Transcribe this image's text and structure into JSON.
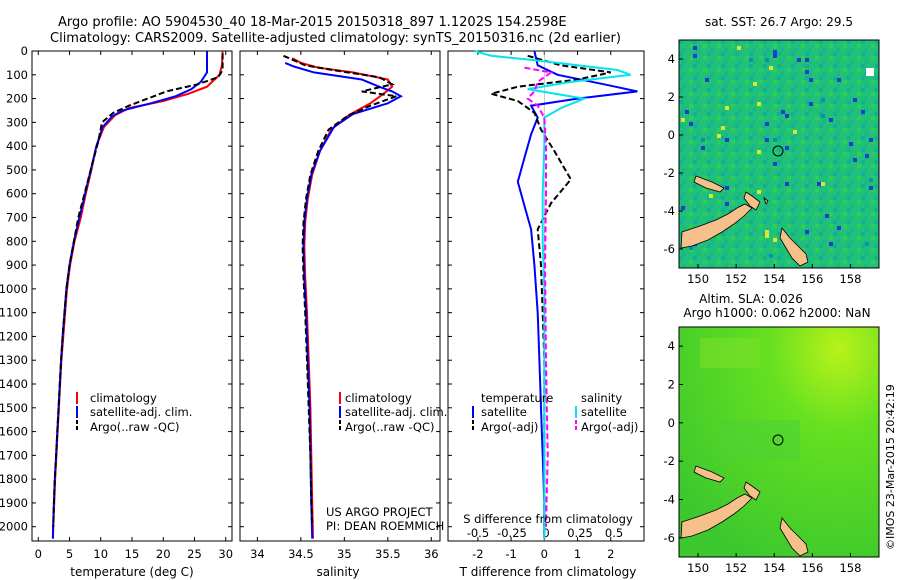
{
  "header": {
    "line1": "Argo profile: AO 5904530_40 18-Mar-2015 20150318_897 1.1202S 154.2598E",
    "line2": "Climatology: CARS2009. Satellite-adjusted climatology: synTS_20150316.nc (2d earlier)"
  },
  "colors": {
    "climatology": "#ff0000",
    "satellite": "#0000ff",
    "argo": "#000000",
    "salinity_sat": "#00e5ee",
    "salinity_argo": "#ff00ff",
    "sst_map_bg": "#1fc07a",
    "sla_map_bg": "#55dd22",
    "land": "#f5c08a"
  },
  "chart_data": [
    {
      "type": "line",
      "title": "",
      "xlabel": "temperature (deg C)",
      "ylabel": "",
      "xlim": [
        -1,
        31
      ],
      "ylim": [
        2060,
        0
      ],
      "xticks": [
        "0",
        "5",
        "10",
        "15",
        "20",
        "25",
        "30"
      ],
      "yticks": [
        "0",
        "100",
        "200",
        "300",
        "400",
        "500",
        "600",
        "700",
        "800",
        "900",
        "1000",
        "1100",
        "1200",
        "1300",
        "1400",
        "1500",
        "1600",
        "1700",
        "1800",
        "1900",
        "2000"
      ],
      "legend": [
        "climatology",
        "satellite-adj. clim.",
        "Argo(..raw -QC)"
      ],
      "series": [
        {
          "name": "climatology",
          "color": "#ff0000",
          "dash": false,
          "points": [
            [
              29.5,
              0
            ],
            [
              29.4,
              60
            ],
            [
              29.0,
              100
            ],
            [
              27.0,
              150
            ],
            [
              24.0,
              180
            ],
            [
              20.0,
              210
            ],
            [
              14.5,
              240
            ],
            [
              12.3,
              270
            ],
            [
              10.5,
              320
            ],
            [
              9.3,
              400
            ],
            [
              8.5,
              500
            ],
            [
              7.6,
              600
            ],
            [
              6.8,
              700
            ],
            [
              5.8,
              800
            ],
            [
              5.1,
              900
            ],
            [
              4.6,
              1000
            ],
            [
              4.3,
              1100
            ],
            [
              4.0,
              1200
            ],
            [
              3.7,
              1300
            ],
            [
              3.5,
              1400
            ],
            [
              3.3,
              1500
            ],
            [
              3.1,
              1600
            ],
            [
              2.9,
              1700
            ],
            [
              2.7,
              1800
            ],
            [
              2.55,
              1900
            ],
            [
              2.4,
              2000
            ],
            [
              2.35,
              2050
            ]
          ]
        },
        {
          "name": "satellite-adj. clim.",
          "color": "#0000ff",
          "dash": false,
          "points": [
            [
              27.0,
              0
            ],
            [
              27.0,
              90
            ],
            [
              26.0,
              130
            ],
            [
              24.5,
              160
            ],
            [
              22.0,
              190
            ],
            [
              18.0,
              220
            ],
            [
              13.5,
              250
            ],
            [
              11.8,
              275
            ],
            [
              10.3,
              320
            ],
            [
              9.3,
              400
            ],
            [
              8.4,
              500
            ],
            [
              7.5,
              600
            ],
            [
              6.6,
              700
            ],
            [
              5.7,
              800
            ],
            [
              5.0,
              900
            ],
            [
              4.5,
              1000
            ],
            [
              4.2,
              1100
            ],
            [
              3.9,
              1200
            ],
            [
              3.65,
              1300
            ],
            [
              3.45,
              1400
            ],
            [
              3.25,
              1500
            ],
            [
              3.05,
              1600
            ],
            [
              2.85,
              1700
            ],
            [
              2.65,
              1800
            ],
            [
              2.5,
              1900
            ],
            [
              2.38,
              2000
            ],
            [
              2.35,
              2050
            ]
          ]
        },
        {
          "name": "Argo(..raw -QC)",
          "color": "#000000",
          "dash": true,
          "points": [
            [
              29.5,
              10
            ],
            [
              29.5,
              80
            ],
            [
              28.8,
              110
            ],
            [
              25.5,
              140
            ],
            [
              20.5,
              170
            ],
            [
              17.5,
              200
            ],
            [
              14.5,
              230
            ],
            [
              12.0,
              260
            ],
            [
              10.2,
              300
            ],
            [
              9.6,
              380
            ],
            [
              8.7,
              470
            ],
            [
              7.8,
              560
            ],
            [
              7.2,
              620
            ],
            [
              6.4,
              700
            ],
            [
              5.7,
              800
            ],
            [
              5.0,
              900
            ],
            [
              4.5,
              1000
            ],
            [
              4.2,
              1100
            ],
            [
              3.9,
              1200
            ],
            [
              3.65,
              1300
            ],
            [
              3.45,
              1400
            ],
            [
              3.25,
              1500
            ],
            [
              3.05,
              1600
            ],
            [
              2.85,
              1700
            ],
            [
              2.65,
              1800
            ],
            [
              2.5,
              1900
            ],
            [
              2.4,
              2000
            ]
          ]
        }
      ]
    },
    {
      "type": "line",
      "title": "",
      "xlabel": "salinity",
      "ylabel": "",
      "xlim": [
        33.8,
        36.1
      ],
      "ylim": [
        2060,
        0
      ],
      "xticks": [
        "34",
        "34.5",
        "35",
        "35.5",
        "36"
      ],
      "legend": [
        "climatology",
        "satellite-adj. clim.",
        "Argo(..raw -QC)"
      ],
      "series": [
        {
          "name": "climatology",
          "color": "#ff0000",
          "dash": false,
          "points": [
            [
              34.4,
              30
            ],
            [
              34.5,
              50
            ],
            [
              34.7,
              70
            ],
            [
              35.1,
              90
            ],
            [
              35.5,
              120
            ],
            [
              35.55,
              150
            ],
            [
              35.45,
              180
            ],
            [
              35.3,
              220
            ],
            [
              35.05,
              270
            ],
            [
              34.85,
              330
            ],
            [
              34.72,
              420
            ],
            [
              34.63,
              520
            ],
            [
              34.58,
              620
            ],
            [
              34.55,
              720
            ],
            [
              34.54,
              820
            ],
            [
              34.55,
              950
            ],
            [
              34.57,
              1100
            ],
            [
              34.59,
              1300
            ],
            [
              34.61,
              1500
            ],
            [
              34.62,
              1700
            ],
            [
              34.63,
              1900
            ],
            [
              34.64,
              2050
            ]
          ]
        },
        {
          "name": "satellite-adj. clim.",
          "color": "#0000ff",
          "dash": false,
          "points": [
            [
              34.32,
              50
            ],
            [
              34.42,
              65
            ],
            [
              34.65,
              90
            ],
            [
              35.2,
              120
            ],
            [
              35.4,
              150
            ],
            [
              35.55,
              170
            ],
            [
              35.65,
              190
            ],
            [
              35.5,
              220
            ],
            [
              35.1,
              265
            ],
            [
              34.88,
              320
            ],
            [
              34.72,
              420
            ],
            [
              34.62,
              520
            ],
            [
              34.57,
              620
            ],
            [
              34.54,
              720
            ],
            [
              34.53,
              820
            ],
            [
              34.54,
              950
            ],
            [
              34.56,
              1100
            ],
            [
              34.58,
              1300
            ],
            [
              34.6,
              1500
            ],
            [
              34.61,
              1700
            ],
            [
              34.62,
              1900
            ],
            [
              34.63,
              2050
            ]
          ]
        },
        {
          "name": "Argo(..raw -QC)",
          "color": "#000000",
          "dash": true,
          "points": [
            [
              34.3,
              20
            ],
            [
              34.55,
              60
            ],
            [
              34.95,
              85
            ],
            [
              35.4,
              110
            ],
            [
              35.55,
              140
            ],
            [
              35.2,
              170
            ],
            [
              35.6,
              190
            ],
            [
              35.3,
              230
            ],
            [
              35.05,
              270
            ],
            [
              34.82,
              330
            ],
            [
              34.7,
              420
            ],
            [
              34.61,
              520
            ],
            [
              34.56,
              620
            ],
            [
              34.53,
              720
            ],
            [
              34.52,
              820
            ],
            [
              34.53,
              950
            ],
            [
              34.55,
              1100
            ],
            [
              34.57,
              1300
            ],
            [
              34.59,
              1500
            ],
            [
              34.61,
              1700
            ],
            [
              34.62,
              1900
            ],
            [
              34.63,
              2000
            ]
          ]
        }
      ],
      "annotations": [
        "US ARGO PROJECT",
        "PI: DEAN ROEMMICH"
      ]
    },
    {
      "type": "line",
      "title": "",
      "xlabel": "T difference from climatology",
      "top_xlabel": "S difference from climatology",
      "ylabel": "",
      "xlim": [
        -2.9,
        3.0
      ],
      "ylim": [
        2060,
        0
      ],
      "xticks": [
        "-2",
        "-1",
        "0",
        "1",
        "2"
      ],
      "top_xticks": [
        "-0.5",
        "-0.25",
        "0",
        "0.25",
        "0.5"
      ],
      "legend_headers": [
        "temperature",
        "salinity"
      ],
      "legend": [
        "satellite",
        "Argo(-adj)",
        "satellite",
        "Argo(-adj)"
      ],
      "series": [
        {
          "name": "satellite (temperature)",
          "color": "#0000ff",
          "dash": false,
          "points": [
            [
              -0.3,
              0
            ],
            [
              -0.2,
              60
            ],
            [
              0.4,
              100
            ],
            [
              1.8,
              140
            ],
            [
              2.8,
              170
            ],
            [
              1.0,
              200
            ],
            [
              -0.4,
              230
            ],
            [
              -0.2,
              280
            ],
            [
              -0.4,
              350
            ],
            [
              -0.6,
              450
            ],
            [
              -0.8,
              550
            ],
            [
              -0.6,
              650
            ],
            [
              -0.4,
              750
            ],
            [
              -0.3,
              900
            ],
            [
              -0.2,
              1100
            ],
            [
              -0.15,
              1300
            ],
            [
              -0.1,
              1500
            ],
            [
              -0.05,
              1700
            ],
            [
              0,
              1900
            ],
            [
              0,
              2050
            ]
          ]
        },
        {
          "name": "Argo(-adj) (temperature)",
          "color": "#000000",
          "dash": true,
          "points": [
            [
              -0.5,
              20
            ],
            [
              0.5,
              60
            ],
            [
              2.0,
              90
            ],
            [
              1.0,
              120
            ],
            [
              -0.8,
              150
            ],
            [
              -1.6,
              180
            ],
            [
              -0.8,
              210
            ],
            [
              -0.3,
              260
            ],
            [
              -0.1,
              330
            ],
            [
              0.3,
              420
            ],
            [
              0.8,
              540
            ],
            [
              0.2,
              640
            ],
            [
              -0.2,
              750
            ],
            [
              -0.1,
              900
            ],
            [
              -0.05,
              1100
            ],
            [
              0,
              1300
            ],
            [
              0,
              1500
            ],
            [
              0,
              1700
            ],
            [
              0,
              1900
            ],
            [
              0,
              2000
            ]
          ]
        },
        {
          "name": "satellite (salinity)",
          "color": "#00e5ee",
          "dash": false,
          "points": [
            [
              -2.1,
              0
            ],
            [
              -1.6,
              20
            ],
            [
              -0.2,
              40
            ],
            [
              1.0,
              60
            ],
            [
              2.2,
              80
            ],
            [
              2.6,
              100
            ],
            [
              0.8,
              130
            ],
            [
              -0.5,
              160
            ],
            [
              1.2,
              200
            ],
            [
              0.5,
              240
            ],
            [
              0.0,
              280
            ],
            [
              0.0,
              400
            ],
            [
              -0.05,
              600
            ],
            [
              -0.05,
              800
            ],
            [
              0,
              1000
            ],
            [
              0,
              1300
            ],
            [
              0,
              1600
            ],
            [
              0,
              2050
            ]
          ]
        },
        {
          "name": "Argo(-adj) (salinity)",
          "color": "#ff00ff",
          "dash": true,
          "points": [
            [
              -0.6,
              70
            ],
            [
              0.2,
              90
            ],
            [
              -0.2,
              130
            ],
            [
              -0.3,
              170
            ],
            [
              -0.5,
              200
            ],
            [
              -0.2,
              230
            ],
            [
              0.0,
              280
            ],
            [
              0.05,
              400
            ],
            [
              0.05,
              600
            ],
            [
              0.02,
              900
            ],
            [
              0.05,
              1300
            ],
            [
              0.1,
              1700
            ],
            [
              0.05,
              2000
            ]
          ]
        }
      ]
    },
    {
      "type": "heatmap",
      "title": "sat. SST: 26.7 Argo: 29.5",
      "xlim": [
        149,
        159.5
      ],
      "ylim": [
        -7,
        5
      ],
      "xticks": [
        "150",
        "152",
        "154",
        "156",
        "158"
      ],
      "yticks": [
        "4",
        "2",
        "0",
        "-2",
        "-4",
        "-6"
      ],
      "marker": {
        "lon": 154.26,
        "lat": -1.12
      }
    },
    {
      "type": "heatmap",
      "title": "Altim. SLA: 0.026",
      "subtitle": "Argo h1000: 0.062 h2000: NaN",
      "xlim": [
        149,
        159.5
      ],
      "ylim": [
        -7,
        5
      ],
      "xticks": [
        "150",
        "152",
        "154",
        "156",
        "158"
      ],
      "yticks": [
        "4",
        "2",
        "0",
        "-2",
        "-4",
        "-6"
      ],
      "marker": {
        "lon": 154.26,
        "lat": -1.12
      }
    }
  ],
  "footer": {
    "credit": "©IMOS 23-Mar-2015 20:42:19"
  }
}
